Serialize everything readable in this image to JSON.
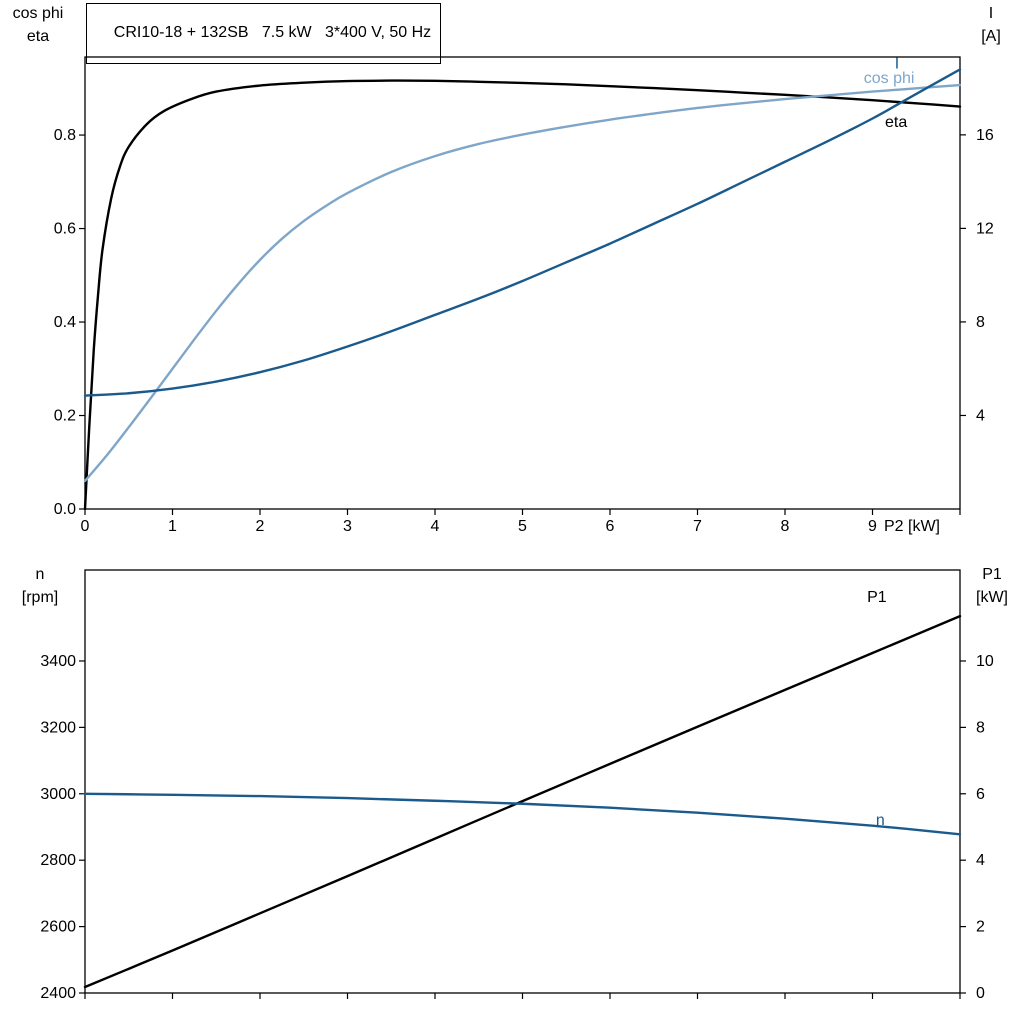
{
  "header": {
    "title": "CRI10-18 + 132SB   7.5 kW   3*400 V, 50 Hz"
  },
  "colors": {
    "black": "#000000",
    "dark_blue": "#1a5a8c",
    "light_blue": "#7fa6c9",
    "frame": "#000000",
    "background": "#ffffff"
  },
  "chart_data": [
    {
      "type": "line",
      "name": "top-chart",
      "x_axis": {
        "label": "P2 [kW]",
        "min": 0,
        "max": 10,
        "ticks": [
          0,
          1,
          2,
          3,
          4,
          5,
          6,
          7,
          8,
          9,
          10
        ],
        "tick_labels": [
          "0",
          "1",
          "2",
          "3",
          "4",
          "5",
          "6",
          "7",
          "8",
          "9",
          ""
        ]
      },
      "left_axis": {
        "title_lines": [
          "cos phi",
          "eta"
        ],
        "min": 0,
        "max": 0.967,
        "ticks": [
          0.0,
          0.2,
          0.4,
          0.6,
          0.8
        ],
        "tick_labels": [
          "0.0",
          "0.2",
          "0.4",
          "0.6",
          "0.8"
        ]
      },
      "right_axis": {
        "title_lines": [
          "I",
          "[A]"
        ],
        "min": 0,
        "max": 19.33,
        "ticks": [
          4,
          8,
          12,
          16
        ],
        "tick_labels": [
          "4",
          "8",
          "12",
          "16"
        ]
      },
      "series": [
        {
          "name": "eta",
          "axis": "left",
          "color_key": "black",
          "points": [
            [
              0,
              0
            ],
            [
              0.05,
              0.18
            ],
            [
              0.1,
              0.34
            ],
            [
              0.15,
              0.46
            ],
            [
              0.2,
              0.555
            ],
            [
              0.3,
              0.665
            ],
            [
              0.4,
              0.733
            ],
            [
              0.5,
              0.775
            ],
            [
              0.7,
              0.822
            ],
            [
              0.9,
              0.851
            ],
            [
              1.2,
              0.876
            ],
            [
              1.5,
              0.893
            ],
            [
              2,
              0.906
            ],
            [
              2.5,
              0.912
            ],
            [
              3,
              0.9155
            ],
            [
              3.5,
              0.9165
            ],
            [
              4,
              0.916
            ],
            [
              4.5,
              0.914
            ],
            [
              5,
              0.9115
            ],
            [
              5.5,
              0.9085
            ],
            [
              6,
              0.9045
            ],
            [
              6.5,
              0.9005
            ],
            [
              7,
              0.896
            ],
            [
              7.5,
              0.891
            ],
            [
              8,
              0.886
            ],
            [
              8.5,
              0.8805
            ],
            [
              9,
              0.8745
            ],
            [
              9.5,
              0.868
            ],
            [
              10,
              0.861
            ]
          ]
        },
        {
          "name": "cos-phi",
          "axis": "left",
          "color_key": "light_blue",
          "points": [
            [
              0,
              0.06
            ],
            [
              0.25,
              0.115
            ],
            [
              0.5,
              0.175
            ],
            [
              0.75,
              0.237
            ],
            [
              1,
              0.3
            ],
            [
              1.25,
              0.363
            ],
            [
              1.5,
              0.424
            ],
            [
              1.75,
              0.481
            ],
            [
              2,
              0.533
            ],
            [
              2.25,
              0.578
            ],
            [
              2.5,
              0.616
            ],
            [
              2.75,
              0.648
            ],
            [
              3,
              0.676
            ],
            [
              3.5,
              0.721
            ],
            [
              4,
              0.755
            ],
            [
              4.5,
              0.781
            ],
            [
              5,
              0.801
            ],
            [
              5.5,
              0.818
            ],
            [
              6,
              0.833
            ],
            [
              6.5,
              0.846
            ],
            [
              7,
              0.858
            ],
            [
              7.5,
              0.868
            ],
            [
              8,
              0.877
            ],
            [
              8.5,
              0.885
            ],
            [
              9,
              0.893
            ],
            [
              9.5,
              0.9
            ],
            [
              10,
              0.907
            ]
          ]
        },
        {
          "name": "current",
          "axis": "right",
          "color_key": "dark_blue",
          "points": [
            [
              0,
              4.85
            ],
            [
              0.5,
              4.95
            ],
            [
              1,
              5.15
            ],
            [
              1.5,
              5.45
            ],
            [
              2,
              5.85
            ],
            [
              2.5,
              6.35
            ],
            [
              3,
              6.95
            ],
            [
              3.5,
              7.6
            ],
            [
              4,
              8.3
            ],
            [
              4.5,
              9.0
            ],
            [
              5,
              9.75
            ],
            [
              5.5,
              10.55
            ],
            [
              6,
              11.35
            ],
            [
              6.5,
              12.2
            ],
            [
              7,
              13.05
            ],
            [
              7.5,
              13.95
            ],
            [
              8,
              14.85
            ],
            [
              8.5,
              15.75
            ],
            [
              9,
              16.7
            ],
            [
              9.5,
              17.75
            ],
            [
              10,
              18.8
            ]
          ]
        }
      ],
      "labels": [
        {
          "text": "I",
          "axis": "right",
          "x": 9.28,
          "y": 19.05,
          "color_key": "dark_blue"
        },
        {
          "text": "cos phi",
          "axis": "left",
          "x": 9.19,
          "y": 0.922,
          "color_key": "light_blue"
        },
        {
          "text": "eta",
          "axis": "left",
          "x": 9.27,
          "y": 0.828,
          "color_key": "black"
        }
      ]
    },
    {
      "type": "line",
      "name": "bottom-chart",
      "x_axis": {
        "label": "",
        "min": 0,
        "max": 10,
        "ticks": [
          0,
          1,
          2,
          3,
          4,
          5,
          6,
          7,
          8,
          9,
          10
        ],
        "tick_labels": []
      },
      "left_axis": {
        "title_lines": [
          "n",
          "[rpm]"
        ],
        "min": 2400,
        "max": 3674,
        "ticks": [
          2400,
          2600,
          2800,
          3000,
          3200,
          3400
        ],
        "tick_labels": [
          "2400",
          "2600",
          "2800",
          "3000",
          "3200",
          "3400"
        ]
      },
      "right_axis": {
        "title_lines": [
          "P1",
          "[kW]"
        ],
        "min": 0,
        "max": 12.74,
        "ticks": [
          0,
          2,
          4,
          6,
          8,
          10
        ],
        "tick_labels": [
          "0",
          "2",
          "4",
          "6",
          "8",
          "10"
        ]
      },
      "series": [
        {
          "name": "p1",
          "axis": "right",
          "color_key": "black",
          "points": [
            [
              0,
              0.18
            ],
            [
              1,
              1.28
            ],
            [
              2,
              2.4
            ],
            [
              3,
              3.52
            ],
            [
              4,
              4.65
            ],
            [
              5,
              5.78
            ],
            [
              6,
              6.9
            ],
            [
              7,
              8.02
            ],
            [
              8,
              9.13
            ],
            [
              9,
              10.24
            ],
            [
              10,
              11.35
            ]
          ]
        },
        {
          "name": "speed",
          "axis": "left",
          "color_key": "dark_blue",
          "points": [
            [
              0,
              3000
            ],
            [
              1,
              2997
            ],
            [
              2,
              2993
            ],
            [
              3,
              2987
            ],
            [
              4,
              2979
            ],
            [
              5,
              2970
            ],
            [
              6,
              2958
            ],
            [
              7,
              2943
            ],
            [
              8,
              2925
            ],
            [
              9,
              2904
            ],
            [
              10,
              2878
            ]
          ]
        }
      ],
      "labels": [
        {
          "text": "P1",
          "axis": "right",
          "x": 9.05,
          "y": 11.93,
          "color_key": "black"
        },
        {
          "text": "n",
          "axis": "left",
          "x": 9.09,
          "y": 2921,
          "color_key": "dark_blue"
        }
      ]
    }
  ]
}
